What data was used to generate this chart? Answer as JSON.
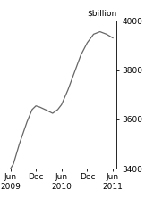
{
  "title": "$billion",
  "x_tick_labels": [
    "Jun\n2009",
    "Dec",
    "Jun\n2010",
    "Dec",
    "Jun\n2011"
  ],
  "x_tick_positions": [
    0,
    1,
    2,
    3,
    4
  ],
  "ylim": [
    3400,
    4000
  ],
  "yticks": [
    3400,
    3600,
    3800,
    4000
  ],
  "line_color": "#666666",
  "background_color": "#ffffff",
  "data_x": [
    0,
    0.12,
    0.35,
    0.65,
    0.85,
    1.0,
    1.15,
    1.4,
    1.65,
    1.85,
    2.0,
    2.25,
    2.5,
    2.75,
    3.0,
    3.25,
    3.5,
    3.75,
    4.0
  ],
  "data_y": [
    3400,
    3420,
    3500,
    3590,
    3640,
    3655,
    3650,
    3638,
    3625,
    3640,
    3660,
    3720,
    3790,
    3860,
    3910,
    3945,
    3955,
    3945,
    3930
  ],
  "figsize": [
    1.81,
    2.31
  ],
  "dpi": 100,
  "title_fontsize": 6.5,
  "tick_fontsize": 6.5,
  "linewidth": 0.9
}
